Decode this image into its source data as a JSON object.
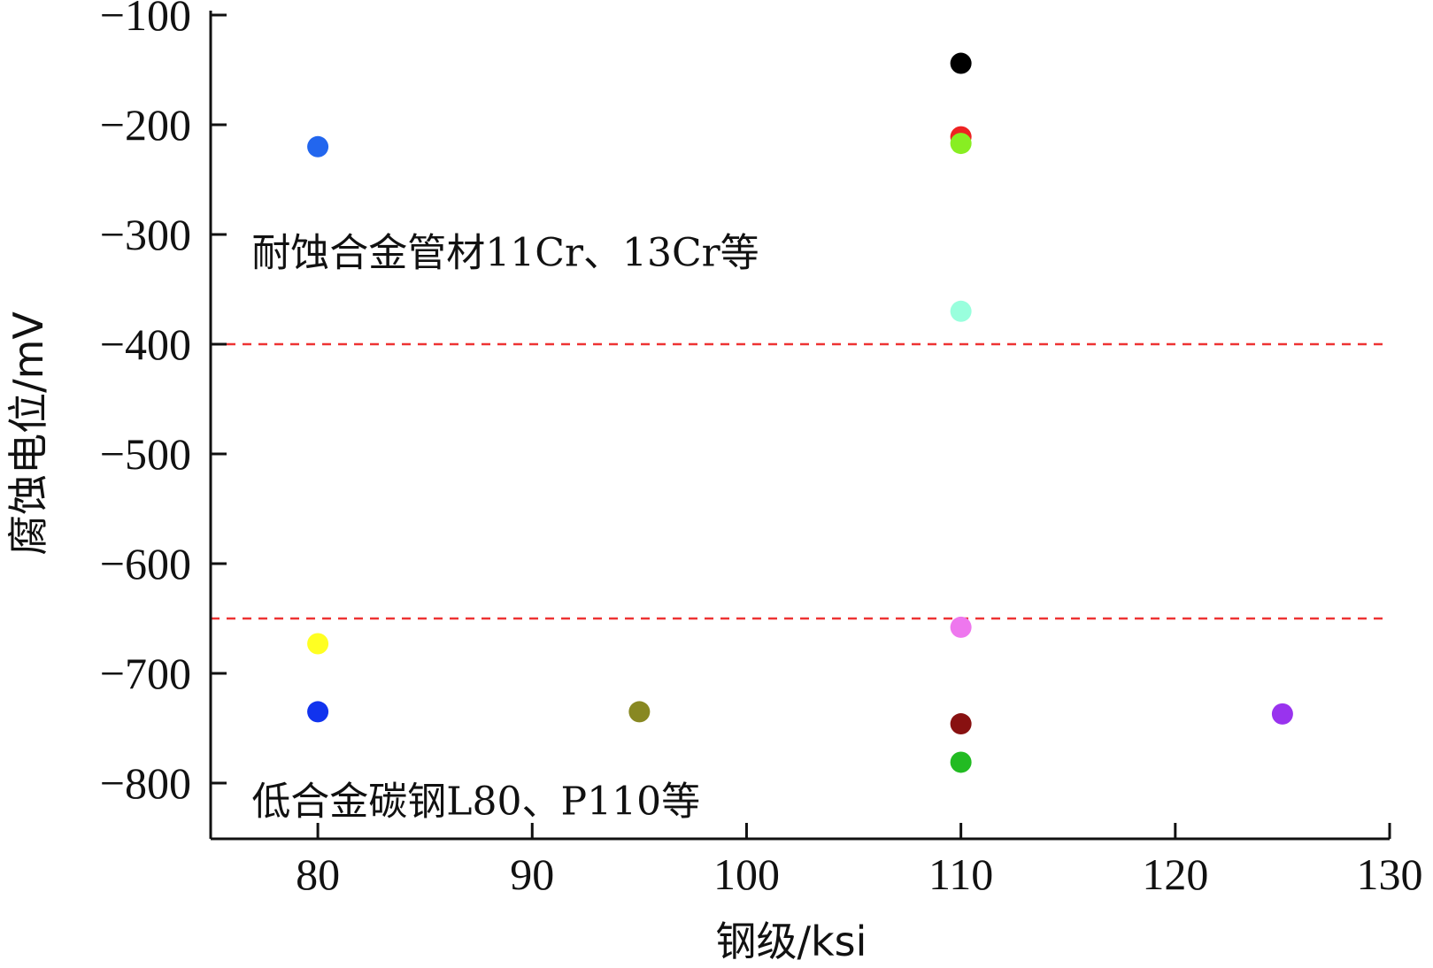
{
  "chart_data": {
    "type": "scatter",
    "xlabel": "钢级/ksi",
    "ylabel": "腐蚀电位/mV",
    "xlim": [
      75,
      130
    ],
    "ylim": [
      -850,
      -100
    ],
    "xticks": [
      80,
      90,
      100,
      110,
      120,
      130
    ],
    "yticks": [
      -100,
      -200,
      -300,
      -400,
      -500,
      -600,
      -700,
      -800
    ],
    "xtick_labels": [
      "80",
      "90",
      "100",
      "110",
      "120",
      "130"
    ],
    "ytick_labels": [
      "−100",
      "−200",
      "−300",
      "−400",
      "−500",
      "−600",
      "−700",
      "−800"
    ],
    "grid": false,
    "reference_lines": [
      {
        "y": -400,
        "color": "#ee3333",
        "style": "dashed"
      },
      {
        "y": -650,
        "color": "#ee3333",
        "style": "dashed"
      }
    ],
    "annotations": [
      {
        "text": "耐蚀合金管材11Cr、13Cr等",
        "x": 76.5,
        "y": -315
      },
      {
        "text": "低合金碳钢L80、P110等",
        "x": 76.5,
        "y": -815
      }
    ],
    "points": [
      {
        "x": 80,
        "y": -220,
        "color": "#2266ee"
      },
      {
        "x": 80,
        "y": -673,
        "color": "#ffff22"
      },
      {
        "x": 80,
        "y": -735,
        "color": "#1133ee"
      },
      {
        "x": 95,
        "y": -735,
        "color": "#888822"
      },
      {
        "x": 110,
        "y": -144,
        "color": "#000000"
      },
      {
        "x": 110,
        "y": -211,
        "color": "#ee2222"
      },
      {
        "x": 110,
        "y": -217,
        "color": "#88ee22"
      },
      {
        "x": 110,
        "y": -370,
        "color": "#99ffdd"
      },
      {
        "x": 110,
        "y": -658,
        "color": "#ee77ee"
      },
      {
        "x": 110,
        "y": -746,
        "color": "#881111"
      },
      {
        "x": 110,
        "y": -781,
        "color": "#22bb22"
      },
      {
        "x": 125,
        "y": -737,
        "color": "#9933ee"
      }
    ]
  }
}
